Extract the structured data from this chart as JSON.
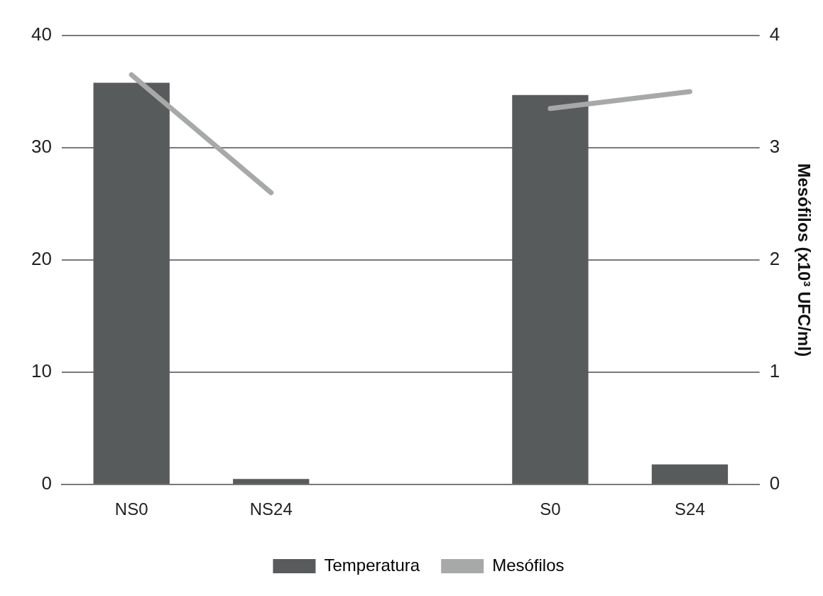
{
  "chart_data": {
    "type": "bar",
    "categories": [
      "NS0",
      "NS24",
      null,
      "S0",
      "S24"
    ],
    "series": [
      {
        "name": "Temperatura",
        "color": "#585b5b",
        "values": [
          35.8,
          0.5,
          null,
          34.7,
          1.8
        ]
      },
      {
        "name": "Mesófilos",
        "type": "line",
        "axis": "y2",
        "color": "#a7a9a9",
        "values": [
          3.65,
          2.6,
          null,
          3.35,
          3.5
        ]
      }
    ],
    "y2label": "Mesófilos (x10³ UFC/ml)",
    "ylim": [
      0,
      40
    ],
    "yticks": [
      0,
      10,
      20,
      30,
      40
    ],
    "y2lim": [
      0,
      4
    ],
    "y2ticks": [
      0,
      1,
      2,
      3,
      4
    ],
    "grid": "y",
    "legend": "bottom",
    "marker": "none"
  }
}
